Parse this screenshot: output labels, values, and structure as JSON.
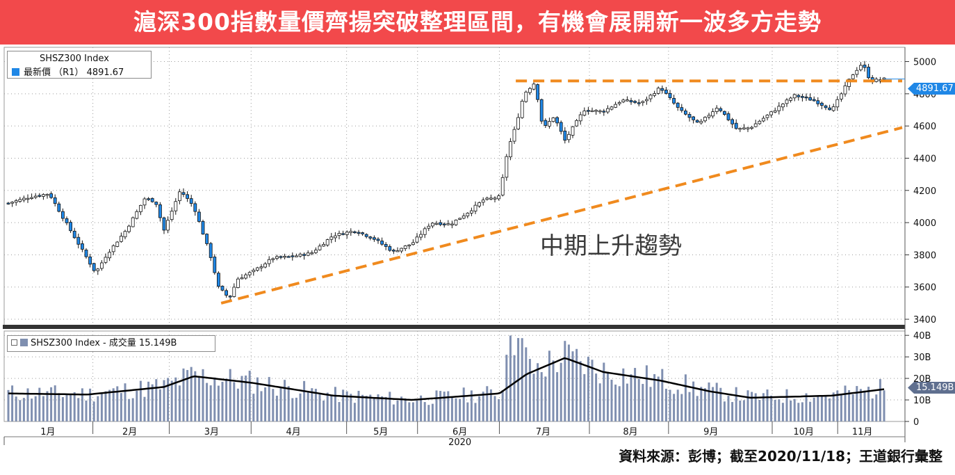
{
  "header": {
    "title": "滬深300指數量價齊揚突破整理區間，有機會展開新一波多方走勢",
    "background_color": "#f2494b"
  },
  "footer": {
    "source": "資料來源：彭博；截至2020/11/18；王道銀行彙整"
  },
  "annotation": {
    "text": "中期上升趨勢",
    "line_color": "#f08a1e"
  },
  "legend_price": {
    "line1": "SHSZ300 Index",
    "line2": "最新價 （R1） 4891.67"
  },
  "legend_volume": {
    "text": "SHSZ300 Index - 成交量 15.149B"
  },
  "tags": {
    "price": "4891.67",
    "volume": "15.149B"
  },
  "chart_data": {
    "type": "candlestick_with_volume",
    "instrument": "SHSZ300 Index",
    "price_panel": {
      "last": 4891.67,
      "y_ticks": [
        3400,
        3600,
        3800,
        4000,
        4200,
        4400,
        4600,
        4800,
        5000
      ],
      "ylim": [
        3370,
        5080
      ],
      "series_points": [
        [
          "2020-01-02",
          4121
        ],
        [
          "2020-01-10",
          4160
        ],
        [
          "2020-01-17",
          4180
        ],
        [
          "2020-01-23",
          4003
        ],
        [
          "2020-02-03",
          3688
        ],
        [
          "2020-02-07",
          3800
        ],
        [
          "2020-02-14",
          3950
        ],
        [
          "2020-02-21",
          4150
        ],
        [
          "2020-02-25",
          4130
        ],
        [
          "2020-02-28",
          3950
        ],
        [
          "2020-03-05",
          4200
        ],
        [
          "2020-03-10",
          4100
        ],
        [
          "2020-03-16",
          3800
        ],
        [
          "2020-03-19",
          3600
        ],
        [
          "2020-03-23",
          3530
        ],
        [
          "2020-03-26",
          3650
        ],
        [
          "2020-04-01",
          3700
        ],
        [
          "2020-04-08",
          3780
        ],
        [
          "2020-04-15",
          3790
        ],
        [
          "2020-04-22",
          3810
        ],
        [
          "2020-04-30",
          3920
        ],
        [
          "2020-05-08",
          3950
        ],
        [
          "2020-05-15",
          3900
        ],
        [
          "2020-05-22",
          3820
        ],
        [
          "2020-05-29",
          3870
        ],
        [
          "2020-06-05",
          4000
        ],
        [
          "2020-06-12",
          3990
        ],
        [
          "2020-06-19",
          4070
        ],
        [
          "2020-06-24",
          4140
        ],
        [
          "2020-06-30",
          4160
        ],
        [
          "2020-07-03",
          4450
        ],
        [
          "2020-07-06",
          4600
        ],
        [
          "2020-07-09",
          4800
        ],
        [
          "2020-07-13",
          4870
        ],
        [
          "2020-07-16",
          4580
        ],
        [
          "2020-07-20",
          4660
        ],
        [
          "2020-07-24",
          4510
        ],
        [
          "2020-07-31",
          4700
        ],
        [
          "2020-08-07",
          4690
        ],
        [
          "2020-08-14",
          4760
        ],
        [
          "2020-08-21",
          4740
        ],
        [
          "2020-08-28",
          4840
        ],
        [
          "2020-09-04",
          4700
        ],
        [
          "2020-09-11",
          4610
        ],
        [
          "2020-09-18",
          4720
        ],
        [
          "2020-09-25",
          4580
        ],
        [
          "2020-09-30",
          4590
        ],
        [
          "2020-10-09",
          4700
        ],
        [
          "2020-10-16",
          4790
        ],
        [
          "2020-10-23",
          4760
        ],
        [
          "2020-10-30",
          4700
        ],
        [
          "2020-11-06",
          4910
        ],
        [
          "2020-11-10",
          4990
        ],
        [
          "2020-11-13",
          4880
        ],
        [
          "2020-11-18",
          4891.67
        ]
      ]
    },
    "volume_panel": {
      "last": "15.149B",
      "y_ticks": [
        "0",
        "10B",
        "20B",
        "30B",
        "40B"
      ],
      "ylim": [
        0,
        42
      ],
      "moving_average_points": [
        [
          "2020-01-02",
          13
        ],
        [
          "2020-01-31",
          12.5
        ],
        [
          "2020-02-28",
          16
        ],
        [
          "2020-03-10",
          21
        ],
        [
          "2020-03-31",
          18
        ],
        [
          "2020-04-30",
          12
        ],
        [
          "2020-05-29",
          10
        ],
        [
          "2020-06-30",
          13
        ],
        [
          "2020-07-10",
          22
        ],
        [
          "2020-07-24",
          29.5
        ],
        [
          "2020-08-07",
          23
        ],
        [
          "2020-08-28",
          19
        ],
        [
          "2020-09-15",
          14
        ],
        [
          "2020-09-30",
          11
        ],
        [
          "2020-10-30",
          12
        ],
        [
          "2020-11-18",
          15
        ]
      ]
    },
    "x_ticks": [
      "1月",
      "2月",
      "3月",
      "4月",
      "5月",
      "6月",
      "7月",
      "8月",
      "9月",
      "10月",
      "11月"
    ],
    "x_year": "2020",
    "up_color": "#ffffff",
    "down_color": "#1f87e6",
    "volume_bar_color": "#7f8fb0",
    "trend_lines": [
      {
        "kind": "resistance",
        "style": "dashed",
        "from": [
          "2020-07-06",
          4880
        ],
        "to": [
          "2020-11-18",
          4880
        ]
      },
      {
        "kind": "support",
        "style": "dashed",
        "from": [
          "2020-03-20",
          3500
        ],
        "to": [
          "2020-11-18",
          4590
        ]
      }
    ]
  }
}
